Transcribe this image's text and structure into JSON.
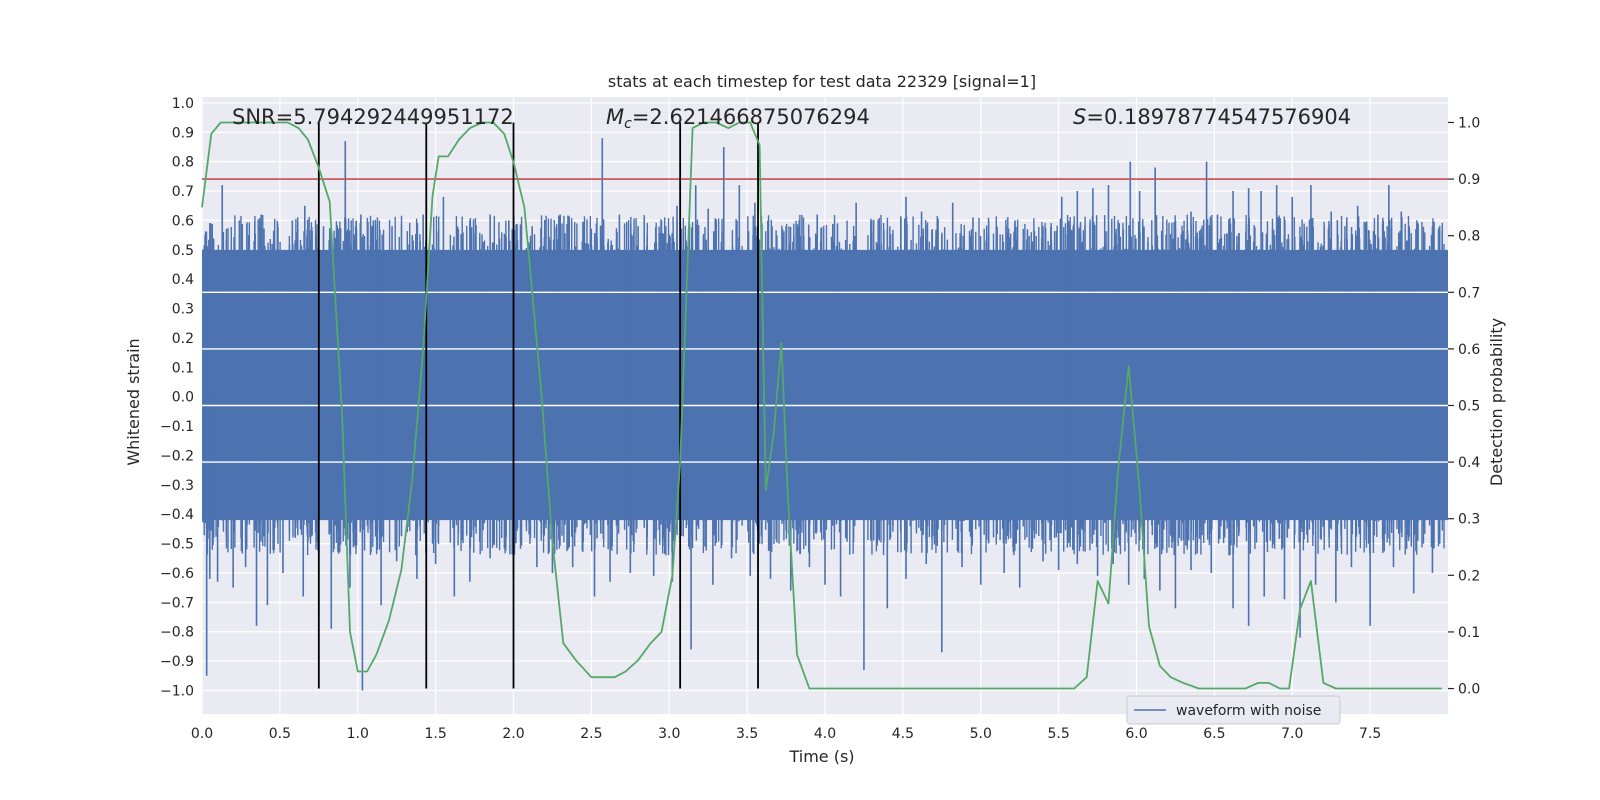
{
  "chart_data": {
    "type": "line",
    "title": "stats at each timestep for test data 22329 [signal=1]",
    "xlabel": "Time (s)",
    "ylabel_left": "Whitened strain",
    "ylabel_right": "Detection probability",
    "xlim": [
      0.0,
      8.0
    ],
    "ylim_left": [
      -1.08,
      1.02
    ],
    "ylim_right": [
      -0.045,
      1.045
    ],
    "x_ticks": [
      "0.0",
      "0.5",
      "1.0",
      "1.5",
      "2.0",
      "2.5",
      "3.0",
      "3.5",
      "4.0",
      "4.5",
      "5.0",
      "5.5",
      "6.0",
      "6.5",
      "7.0",
      "7.5"
    ],
    "x_tick_values": [
      0.0,
      0.5,
      1.0,
      1.5,
      2.0,
      2.5,
      3.0,
      3.5,
      4.0,
      4.5,
      5.0,
      5.5,
      6.0,
      6.5,
      7.0,
      7.5
    ],
    "y_left_ticks": [
      "1.0",
      "0.9",
      "0.8",
      "0.7",
      "0.6",
      "0.5",
      "0.4",
      "0.3",
      "0.2",
      "0.1",
      "0.0",
      "−0.1",
      "−0.2",
      "−0.3",
      "−0.4",
      "−0.5",
      "−0.6",
      "−0.7",
      "−0.8",
      "−0.9",
      "−1.0"
    ],
    "y_left_tick_values": [
      1.0,
      0.9,
      0.8,
      0.7,
      0.6,
      0.5,
      0.4,
      0.3,
      0.2,
      0.1,
      0.0,
      -0.1,
      -0.2,
      -0.3,
      -0.4,
      -0.5,
      -0.6,
      -0.7,
      -0.8,
      -0.9,
      -1.0
    ],
    "y_right_ticks": [
      "1.0",
      "0.9",
      "0.8",
      "0.7",
      "0.6",
      "0.5",
      "0.4",
      "0.3",
      "0.2",
      "0.1",
      "0.0"
    ],
    "y_right_tick_values": [
      1.0,
      0.9,
      0.8,
      0.7,
      0.6,
      0.5,
      0.4,
      0.3,
      0.2,
      0.1,
      0.0
    ],
    "annotations": {
      "snr": "SNR=5.794292449951172",
      "mc_symbol": "M",
      "mc_subscript": "c",
      "mc_value": "=2.621466875076294",
      "s_symbol": "S",
      "s_value": "=0.18978774547576904"
    },
    "legend": {
      "label": "waveform with noise",
      "position": "lower right"
    },
    "waveform": {
      "name": "waveform with noise",
      "color": "#4c72b0",
      "dense_band": [
        -0.42,
        0.5
      ],
      "spikes_positive": [
        [
          0.02,
          0.55
        ],
        [
          0.1,
          0.45
        ],
        [
          0.13,
          0.72
        ],
        [
          0.24,
          0.6
        ],
        [
          0.3,
          0.55
        ],
        [
          0.38,
          0.62
        ],
        [
          0.45,
          0.52
        ],
        [
          0.58,
          0.6
        ],
        [
          0.66,
          0.65
        ],
        [
          0.78,
          0.58
        ],
        [
          0.92,
          0.87
        ],
        [
          1.02,
          0.62
        ],
        [
          1.1,
          0.6
        ],
        [
          1.22,
          0.58
        ],
        [
          1.35,
          0.55
        ],
        [
          1.42,
          0.62
        ],
        [
          1.55,
          0.68
        ],
        [
          1.64,
          0.58
        ],
        [
          1.72,
          0.6
        ],
        [
          1.85,
          0.62
        ],
        [
          1.97,
          0.6
        ],
        [
          2.12,
          0.58
        ],
        [
          2.3,
          0.62
        ],
        [
          2.48,
          0.52
        ],
        [
          2.57,
          0.88
        ],
        [
          2.68,
          0.62
        ],
        [
          2.8,
          0.58
        ],
        [
          2.95,
          0.6
        ],
        [
          3.05,
          0.65
        ],
        [
          3.17,
          0.72
        ],
        [
          3.25,
          0.64
        ],
        [
          3.35,
          0.85
        ],
        [
          3.45,
          0.72
        ],
        [
          3.55,
          0.66
        ],
        [
          3.66,
          0.58
        ],
        [
          3.8,
          0.55
        ],
        [
          3.95,
          0.62
        ],
        [
          4.08,
          0.59
        ],
        [
          4.2,
          0.66
        ],
        [
          4.3,
          0.6
        ],
        [
          4.4,
          0.57
        ],
        [
          4.52,
          0.68
        ],
        [
          4.62,
          0.63
        ],
        [
          4.75,
          0.55
        ],
        [
          4.82,
          0.66
        ],
        [
          4.95,
          0.61
        ],
        [
          5.1,
          0.58
        ],
        [
          5.22,
          0.6
        ],
        [
          5.3,
          0.57
        ],
        [
          5.45,
          0.58
        ],
        [
          5.52,
          0.68
        ],
        [
          5.62,
          0.7
        ],
        [
          5.72,
          0.71
        ],
        [
          5.82,
          0.72
        ],
        [
          5.96,
          0.8
        ],
        [
          6.02,
          0.7
        ],
        [
          6.12,
          0.78
        ],
        [
          6.25,
          0.6
        ],
        [
          6.35,
          0.63
        ],
        [
          6.45,
          0.8
        ],
        [
          6.52,
          0.62
        ],
        [
          6.62,
          0.7
        ],
        [
          6.72,
          0.71
        ],
        [
          6.8,
          0.7
        ],
        [
          6.9,
          0.72
        ],
        [
          7.0,
          0.68
        ],
        [
          7.12,
          0.72
        ],
        [
          7.25,
          0.63
        ],
        [
          7.35,
          0.61
        ],
        [
          7.42,
          0.65
        ],
        [
          7.55,
          0.62
        ],
        [
          7.62,
          0.72
        ],
        [
          7.7,
          0.63
        ],
        [
          7.8,
          0.6
        ],
        [
          7.9,
          0.58
        ],
        [
          7.96,
          0.38
        ]
      ],
      "spikes_negative": [
        [
          0.03,
          -0.95
        ],
        [
          0.05,
          -0.62
        ],
        [
          0.1,
          -0.63
        ],
        [
          0.2,
          -0.65
        ],
        [
          0.28,
          -0.58
        ],
        [
          0.35,
          -0.78
        ],
        [
          0.42,
          -0.71
        ],
        [
          0.52,
          -0.6
        ],
        [
          0.65,
          -0.68
        ],
        [
          0.75,
          -0.74
        ],
        [
          0.83,
          -0.79
        ],
        [
          0.95,
          -0.65
        ],
        [
          1.03,
          -1.0
        ],
        [
          1.15,
          -0.71
        ],
        [
          1.25,
          -0.56
        ],
        [
          1.38,
          -0.62
        ],
        [
          1.5,
          -0.57
        ],
        [
          1.62,
          -0.68
        ],
        [
          1.72,
          -0.63
        ],
        [
          1.85,
          -0.55
        ],
        [
          2.0,
          -0.62
        ],
        [
          2.15,
          -0.58
        ],
        [
          2.25,
          -0.6
        ],
        [
          2.38,
          -0.58
        ],
        [
          2.52,
          -0.68
        ],
        [
          2.62,
          -0.63
        ],
        [
          2.75,
          -0.6
        ],
        [
          2.9,
          -0.61
        ],
        [
          3.02,
          -0.63
        ],
        [
          3.14,
          -0.86
        ],
        [
          3.28,
          -0.64
        ],
        [
          3.4,
          -0.55
        ],
        [
          3.52,
          -0.61
        ],
        [
          3.65,
          -0.62
        ],
        [
          3.78,
          -0.66
        ],
        [
          3.9,
          -0.58
        ],
        [
          4.0,
          -0.64
        ],
        [
          4.1,
          -0.68
        ],
        [
          4.25,
          -0.93
        ],
        [
          4.4,
          -0.72
        ],
        [
          4.52,
          -0.62
        ],
        [
          4.65,
          -0.57
        ],
        [
          4.75,
          -0.87
        ],
        [
          4.88,
          -0.58
        ],
        [
          5.0,
          -0.64
        ],
        [
          5.15,
          -0.6
        ],
        [
          5.25,
          -0.65
        ],
        [
          5.4,
          -0.56
        ],
        [
          5.5,
          -0.59
        ],
        [
          5.62,
          -0.57
        ],
        [
          5.75,
          -0.61
        ],
        [
          5.85,
          -0.57
        ],
        [
          5.95,
          -0.64
        ],
        [
          6.05,
          -0.62
        ],
        [
          6.15,
          -0.66
        ],
        [
          6.25,
          -0.72
        ],
        [
          6.35,
          -0.59
        ],
        [
          6.48,
          -0.6
        ],
        [
          6.62,
          -0.72
        ],
        [
          6.72,
          -0.78
        ],
        [
          6.82,
          -0.68
        ],
        [
          6.95,
          -0.69
        ],
        [
          7.05,
          -0.82
        ],
        [
          7.15,
          -0.64
        ],
        [
          7.28,
          -0.7
        ],
        [
          7.38,
          -0.58
        ],
        [
          7.5,
          -0.78
        ],
        [
          7.65,
          -0.58
        ],
        [
          7.78,
          -0.67
        ],
        [
          7.9,
          -0.6
        ]
      ]
    },
    "detection_probability": {
      "color": "#55a868",
      "x": [
        0.0,
        0.06,
        0.12,
        0.2,
        0.3,
        0.4,
        0.5,
        0.55,
        0.62,
        0.68,
        0.75,
        0.82,
        0.9,
        0.95,
        1.0,
        1.06,
        1.12,
        1.2,
        1.28,
        1.35,
        1.42,
        1.48,
        1.52,
        1.58,
        1.65,
        1.72,
        1.8,
        1.87,
        1.94,
        2.0,
        2.07,
        2.12,
        2.18,
        2.25,
        2.32,
        2.4,
        2.5,
        2.58,
        2.65,
        2.72,
        2.8,
        2.88,
        2.95,
        3.02,
        3.07,
        3.15,
        3.22,
        3.3,
        3.38,
        3.45,
        3.52,
        3.58,
        3.62,
        3.67,
        3.72,
        3.76,
        3.82,
        3.9,
        4.0,
        4.2,
        4.5,
        5.0,
        5.5,
        5.6,
        5.68,
        5.75,
        5.82,
        5.88,
        5.95,
        6.02,
        6.08,
        6.15,
        6.22,
        6.3,
        6.4,
        6.5,
        6.6,
        6.7,
        6.78,
        6.85,
        6.92,
        6.98,
        7.05,
        7.12,
        7.2,
        7.28,
        7.35,
        7.45,
        7.55,
        7.65,
        7.75,
        7.85,
        7.96
      ],
      "values": [
        0.85,
        0.98,
        1.0,
        1.0,
        1.0,
        1.0,
        1.0,
        1.0,
        0.99,
        0.97,
        0.92,
        0.86,
        0.48,
        0.1,
        0.03,
        0.03,
        0.06,
        0.12,
        0.21,
        0.37,
        0.6,
        0.87,
        0.94,
        0.94,
        0.97,
        0.99,
        1.0,
        1.0,
        0.98,
        0.93,
        0.85,
        0.7,
        0.52,
        0.26,
        0.08,
        0.05,
        0.02,
        0.02,
        0.02,
        0.03,
        0.05,
        0.08,
        0.1,
        0.2,
        0.4,
        0.99,
        1.0,
        1.0,
        0.99,
        1.0,
        1.0,
        0.96,
        0.35,
        0.45,
        0.61,
        0.35,
        0.06,
        0.0,
        0.0,
        0.0,
        0.0,
        0.0,
        0.0,
        0.0,
        0.02,
        0.19,
        0.15,
        0.38,
        0.57,
        0.35,
        0.11,
        0.04,
        0.02,
        0.01,
        0.0,
        0.0,
        0.0,
        0.0,
        0.01,
        0.01,
        0.0,
        0.0,
        0.14,
        0.19,
        0.01,
        0.0,
        0.0,
        0.0,
        0.0,
        0.0,
        0.0,
        0.0,
        0.0
      ]
    },
    "threshold": {
      "value": 0.9,
      "axis": "right",
      "color": "#c44e52"
    },
    "vertical_lines": [
      0.75,
      1.44,
      2.0,
      3.07,
      3.57
    ],
    "vertical_lines_color": "#000000"
  }
}
